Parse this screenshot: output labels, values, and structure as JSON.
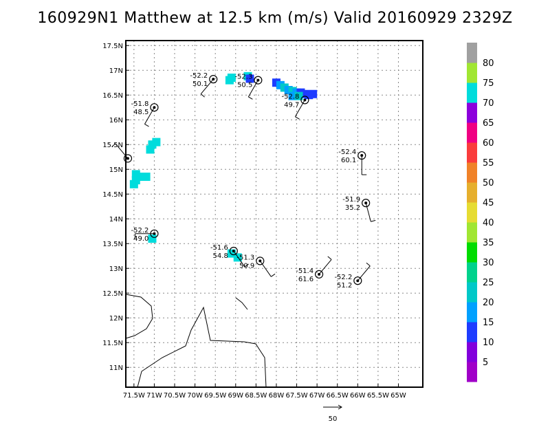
{
  "title": "160929N1 Matthew at 12.5 km (m/s) Valid 20160929 2329Z",
  "map": {
    "lon_range": [
      -71.7,
      -64.4
    ],
    "lat_range": [
      10.6,
      17.6
    ],
    "x_ticks": [
      {
        "lon": -71.5,
        "label": "71.5W"
      },
      {
        "lon": -71.0,
        "label": "71W"
      },
      {
        "lon": -70.5,
        "label": "70.5W"
      },
      {
        "lon": -70.0,
        "label": "70W"
      },
      {
        "lon": -69.5,
        "label": "69.5W"
      },
      {
        "lon": -69.0,
        "label": "69W"
      },
      {
        "lon": -68.5,
        "label": "68.5W"
      },
      {
        "lon": -68.0,
        "label": "68W"
      },
      {
        "lon": -67.5,
        "label": "67.5W"
      },
      {
        "lon": -67.0,
        "label": "67W"
      },
      {
        "lon": -66.5,
        "label": "66.5W"
      },
      {
        "lon": -66.0,
        "label": "66W"
      },
      {
        "lon": -65.5,
        "label": "65.5W"
      },
      {
        "lon": -65.0,
        "label": "65W"
      }
    ],
    "y_ticks": [
      {
        "lat": 11.0,
        "label": "11N"
      },
      {
        "lat": 11.5,
        "label": "11.5N"
      },
      {
        "lat": 12.0,
        "label": "12N"
      },
      {
        "lat": 12.5,
        "label": "12.5N"
      },
      {
        "lat": 13.0,
        "label": "13N"
      },
      {
        "lat": 13.5,
        "label": "13.5N"
      },
      {
        "lat": 14.0,
        "label": "14N"
      },
      {
        "lat": 14.5,
        "label": "14.5N"
      },
      {
        "lat": 15.0,
        "label": "15N"
      },
      {
        "lat": 15.5,
        "label": "15.5N"
      },
      {
        "lat": 16.0,
        "label": "16N"
      },
      {
        "lat": 16.5,
        "label": "16.5N"
      },
      {
        "lat": 17.0,
        "label": "17N"
      },
      {
        "lat": 17.5,
        "label": "17.5N"
      }
    ],
    "grid": true,
    "stations": [
      {
        "lon": -69.55,
        "lat": 16.82,
        "temp": "-52.2",
        "wind": "50.1",
        "barb_dir": 320
      },
      {
        "lon": -68.45,
        "lat": 16.8,
        "temp": "-52.3",
        "wind": "50.5",
        "barb_dir": 330
      },
      {
        "lon": -71.0,
        "lat": 16.25,
        "temp": "-51.8",
        "wind": "48.5",
        "barb_dir": 330
      },
      {
        "lon": -67.3,
        "lat": 16.4,
        "temp": "-52.8",
        "wind": "49.7",
        "barb_dir": 330
      },
      {
        "lon": -65.9,
        "lat": 15.28,
        "temp": "-52.4",
        "wind": "60.1",
        "barb_dir": 360
      },
      {
        "lon": -71.65,
        "lat": 15.22,
        "temp": "",
        "wind": "",
        "barb_dir": 220
      },
      {
        "lon": -65.8,
        "lat": 14.32,
        "temp": "-51.9",
        "wind": "35.2",
        "barb_dir": 15
      },
      {
        "lon": -71.0,
        "lat": 13.7,
        "temp": "-52.2",
        "wind": "49.0",
        "barb_dir": 270
      },
      {
        "lon": -69.05,
        "lat": 13.35,
        "temp": "-51.6",
        "wind": "54.8",
        "barb_dir": 35
      },
      {
        "lon": -68.4,
        "lat": 13.15,
        "temp": "-51.3",
        "wind": "50.9",
        "barb_dir": 35
      },
      {
        "lon": -66.95,
        "lat": 12.88,
        "temp": "-51.4",
        "wind": "61.6",
        "barb_dir": 140
      },
      {
        "lon": -66.0,
        "lat": 12.75,
        "temp": "-52.2",
        "wind": "51.2",
        "barb_dir": 140
      }
    ],
    "wind_cells": [
      {
        "lon": -69.1,
        "lat": 16.85,
        "level": 70
      },
      {
        "lon": -69.15,
        "lat": 16.8,
        "level": 70
      },
      {
        "lon": -68.7,
        "lat": 16.88,
        "level": 70
      },
      {
        "lon": -68.65,
        "lat": 16.83,
        "level": 10
      },
      {
        "lon": -68.0,
        "lat": 16.75,
        "level": 10
      },
      {
        "lon": -67.9,
        "lat": 16.7,
        "level": 15
      },
      {
        "lon": -67.8,
        "lat": 16.65,
        "level": 20
      },
      {
        "lon": -67.7,
        "lat": 16.6,
        "level": 15
      },
      {
        "lon": -67.6,
        "lat": 16.58,
        "level": 20
      },
      {
        "lon": -67.5,
        "lat": 16.55,
        "level": 15
      },
      {
        "lon": -67.4,
        "lat": 16.55,
        "level": 10
      },
      {
        "lon": -67.3,
        "lat": 16.52,
        "level": 10
      },
      {
        "lon": -67.2,
        "lat": 16.5,
        "level": 10
      },
      {
        "lon": -67.1,
        "lat": 16.52,
        "level": 10
      },
      {
        "lon": -67.6,
        "lat": 16.48,
        "level": 15
      },
      {
        "lon": -67.45,
        "lat": 16.48,
        "level": 20
      },
      {
        "lon": -71.05,
        "lat": 15.5,
        "level": 70
      },
      {
        "lon": -70.95,
        "lat": 15.55,
        "level": 70
      },
      {
        "lon": -71.1,
        "lat": 15.4,
        "level": 70
      },
      {
        "lon": -71.45,
        "lat": 14.9,
        "level": 70
      },
      {
        "lon": -71.35,
        "lat": 14.85,
        "level": 70
      },
      {
        "lon": -71.2,
        "lat": 14.85,
        "level": 70
      },
      {
        "lon": -71.45,
        "lat": 14.78,
        "level": 70
      },
      {
        "lon": -71.5,
        "lat": 14.7,
        "level": 70
      },
      {
        "lon": -71.05,
        "lat": 13.6,
        "level": 70
      },
      {
        "lon": -69.1,
        "lat": 13.3,
        "level": 70
      },
      {
        "lon": -68.95,
        "lat": 13.22,
        "level": 70
      }
    ],
    "scale_arrow_label": "50"
  },
  "colorbar": {
    "labels": [
      "5",
      "10",
      "15",
      "20",
      "25",
      "30",
      "35",
      "40",
      "45",
      "50",
      "55",
      "60",
      "65",
      "70",
      "75",
      "80"
    ],
    "colors": [
      "#a000c8",
      "#8200dc",
      "#1e3cff",
      "#00a0ff",
      "#00c8c8",
      "#00d28c",
      "#00dc00",
      "#a0e632",
      "#e6dc32",
      "#e6af2d",
      "#f08228",
      "#fa3c3c",
      "#f00082",
      "#8c00dc",
      "#00dcdc",
      "#a0e632",
      "#a0a0a0"
    ]
  }
}
